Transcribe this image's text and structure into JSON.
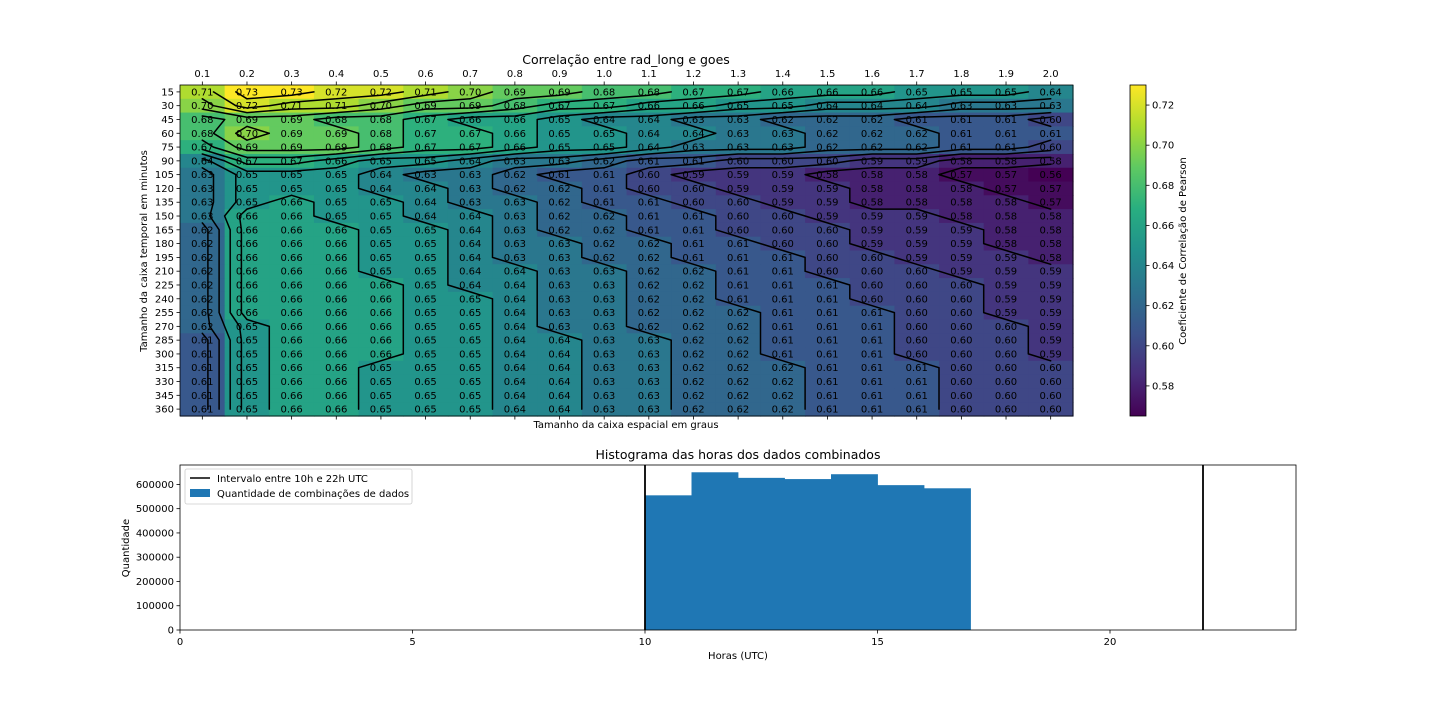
{
  "chart_data": [
    {
      "type": "heatmap",
      "title": "Correlação entre rad_long e goes",
      "xlabel": "Tamanho da caixa espacial em graus",
      "ylabel": "Tamanho da caixa temporal em minutos",
      "colorbar_label": "Coeficiente de Correlação de Pearson",
      "colormap": "viridis",
      "clim": [
        0.565,
        0.73
      ],
      "colorbar_ticks": [
        "0.58",
        "0.60",
        "0.62",
        "0.64",
        "0.66",
        "0.68",
        "0.70",
        "0.72"
      ],
      "x": [
        "0.1",
        "0.2",
        "0.3",
        "0.4",
        "0.5",
        "0.6",
        "0.7",
        "0.8",
        "0.9",
        "1.0",
        "1.1",
        "1.2",
        "1.3",
        "1.4",
        "1.5",
        "1.6",
        "1.7",
        "1.8",
        "1.9",
        "2.0"
      ],
      "y": [
        "15",
        "30",
        "45",
        "60",
        "75",
        "90",
        "105",
        "120",
        "135",
        "150",
        "165",
        "180",
        "195",
        "210",
        "225",
        "240",
        "255",
        "270",
        "285",
        "300",
        "315",
        "330",
        "345",
        "360"
      ],
      "values": [
        [
          0.71,
          0.73,
          0.73,
          0.72,
          0.72,
          0.71,
          0.7,
          0.69,
          0.69,
          0.68,
          0.68,
          0.67,
          0.67,
          0.66,
          0.66,
          0.66,
          0.65,
          0.65,
          0.65,
          0.64
        ],
        [
          0.7,
          0.72,
          0.71,
          0.71,
          0.7,
          0.69,
          0.69,
          0.68,
          0.67,
          0.67,
          0.66,
          0.66,
          0.65,
          0.65,
          0.64,
          0.64,
          0.64,
          0.63,
          0.63,
          0.63
        ],
        [
          0.68,
          0.69,
          0.69,
          0.68,
          0.68,
          0.67,
          0.66,
          0.66,
          0.65,
          0.64,
          0.64,
          0.63,
          0.63,
          0.62,
          0.62,
          0.62,
          0.61,
          0.61,
          0.61,
          0.6
        ],
        [
          0.68,
          0.7,
          0.69,
          0.69,
          0.68,
          0.67,
          0.67,
          0.66,
          0.65,
          0.65,
          0.64,
          0.64,
          0.63,
          0.63,
          0.62,
          0.62,
          0.62,
          0.61,
          0.61,
          0.61
        ],
        [
          0.67,
          0.69,
          0.69,
          0.69,
          0.68,
          0.67,
          0.67,
          0.66,
          0.65,
          0.65,
          0.64,
          0.63,
          0.63,
          0.63,
          0.62,
          0.62,
          0.62,
          0.61,
          0.61,
          0.6
        ],
        [
          0.64,
          0.67,
          0.67,
          0.66,
          0.65,
          0.65,
          0.64,
          0.63,
          0.63,
          0.62,
          0.61,
          0.61,
          0.6,
          0.6,
          0.6,
          0.59,
          0.59,
          0.58,
          0.58,
          0.58
        ],
        [
          0.63,
          0.65,
          0.65,
          0.65,
          0.64,
          0.63,
          0.63,
          0.62,
          0.61,
          0.61,
          0.6,
          0.59,
          0.59,
          0.59,
          0.58,
          0.58,
          0.58,
          0.57,
          0.57,
          0.56
        ],
        [
          0.63,
          0.65,
          0.65,
          0.65,
          0.64,
          0.64,
          0.63,
          0.62,
          0.62,
          0.61,
          0.6,
          0.6,
          0.59,
          0.59,
          0.59,
          0.58,
          0.58,
          0.58,
          0.57,
          0.57
        ],
        [
          0.63,
          0.65,
          0.66,
          0.65,
          0.65,
          0.64,
          0.63,
          0.63,
          0.62,
          0.61,
          0.61,
          0.6,
          0.6,
          0.59,
          0.59,
          0.58,
          0.58,
          0.58,
          0.58,
          0.57
        ],
        [
          0.63,
          0.66,
          0.66,
          0.65,
          0.65,
          0.64,
          0.64,
          0.63,
          0.62,
          0.62,
          0.61,
          0.61,
          0.6,
          0.6,
          0.59,
          0.59,
          0.59,
          0.58,
          0.58,
          0.58
        ],
        [
          0.62,
          0.66,
          0.66,
          0.66,
          0.65,
          0.65,
          0.64,
          0.63,
          0.62,
          0.62,
          0.61,
          0.61,
          0.6,
          0.6,
          0.6,
          0.59,
          0.59,
          0.59,
          0.58,
          0.58
        ],
        [
          0.62,
          0.66,
          0.66,
          0.66,
          0.65,
          0.65,
          0.64,
          0.63,
          0.63,
          0.62,
          0.62,
          0.61,
          0.61,
          0.6,
          0.6,
          0.59,
          0.59,
          0.59,
          0.58,
          0.58
        ],
        [
          0.62,
          0.66,
          0.66,
          0.66,
          0.65,
          0.65,
          0.64,
          0.63,
          0.63,
          0.62,
          0.62,
          0.61,
          0.61,
          0.61,
          0.6,
          0.6,
          0.59,
          0.59,
          0.59,
          0.58
        ],
        [
          0.62,
          0.66,
          0.66,
          0.66,
          0.65,
          0.65,
          0.64,
          0.64,
          0.63,
          0.63,
          0.62,
          0.62,
          0.61,
          0.61,
          0.6,
          0.6,
          0.6,
          0.59,
          0.59,
          0.59
        ],
        [
          0.62,
          0.66,
          0.66,
          0.66,
          0.66,
          0.65,
          0.64,
          0.64,
          0.63,
          0.63,
          0.62,
          0.62,
          0.61,
          0.61,
          0.61,
          0.6,
          0.6,
          0.6,
          0.59,
          0.59
        ],
        [
          0.62,
          0.66,
          0.66,
          0.66,
          0.66,
          0.65,
          0.65,
          0.64,
          0.63,
          0.63,
          0.62,
          0.62,
          0.61,
          0.61,
          0.61,
          0.6,
          0.6,
          0.6,
          0.59,
          0.59
        ],
        [
          0.62,
          0.66,
          0.66,
          0.66,
          0.66,
          0.65,
          0.65,
          0.64,
          0.63,
          0.63,
          0.62,
          0.62,
          0.62,
          0.61,
          0.61,
          0.61,
          0.6,
          0.6,
          0.59,
          0.59
        ],
        [
          0.62,
          0.65,
          0.66,
          0.66,
          0.66,
          0.65,
          0.65,
          0.64,
          0.63,
          0.63,
          0.62,
          0.62,
          0.62,
          0.61,
          0.61,
          0.61,
          0.6,
          0.6,
          0.6,
          0.59
        ],
        [
          0.61,
          0.65,
          0.66,
          0.66,
          0.66,
          0.65,
          0.65,
          0.64,
          0.64,
          0.63,
          0.63,
          0.62,
          0.62,
          0.61,
          0.61,
          0.61,
          0.6,
          0.6,
          0.6,
          0.59
        ],
        [
          0.61,
          0.65,
          0.66,
          0.66,
          0.66,
          0.65,
          0.65,
          0.64,
          0.64,
          0.63,
          0.63,
          0.62,
          0.62,
          0.61,
          0.61,
          0.61,
          0.6,
          0.6,
          0.6,
          0.59
        ],
        [
          0.61,
          0.65,
          0.66,
          0.66,
          0.65,
          0.65,
          0.65,
          0.64,
          0.64,
          0.63,
          0.63,
          0.62,
          0.62,
          0.62,
          0.61,
          0.61,
          0.61,
          0.6,
          0.6,
          0.6
        ],
        [
          0.61,
          0.65,
          0.66,
          0.66,
          0.65,
          0.65,
          0.65,
          0.64,
          0.64,
          0.63,
          0.63,
          0.62,
          0.62,
          0.62,
          0.61,
          0.61,
          0.61,
          0.6,
          0.6,
          0.6
        ],
        [
          0.61,
          0.65,
          0.66,
          0.66,
          0.65,
          0.65,
          0.65,
          0.64,
          0.64,
          0.63,
          0.63,
          0.62,
          0.62,
          0.62,
          0.61,
          0.61,
          0.61,
          0.6,
          0.6,
          0.6
        ],
        [
          0.61,
          0.65,
          0.66,
          0.66,
          0.65,
          0.65,
          0.65,
          0.64,
          0.64,
          0.63,
          0.63,
          0.62,
          0.62,
          0.62,
          0.61,
          0.61,
          0.61,
          0.6,
          0.6,
          0.6
        ]
      ],
      "contour_lines": true,
      "labels_on_cells": true
    },
    {
      "type": "bar",
      "title": "Histograma das horas dos dados combinados",
      "xlabel": "Horas (UTC)",
      "ylabel": "Quantidade",
      "xlim": [
        0,
        24
      ],
      "ylim": [
        0,
        680000
      ],
      "xticks": [
        "0",
        "5",
        "10",
        "15",
        "20"
      ],
      "yticks": [
        "0",
        "100000",
        "200000",
        "300000",
        "400000",
        "500000",
        "600000"
      ],
      "bins": [
        [
          10,
          11
        ],
        [
          11,
          12
        ],
        [
          12,
          13
        ],
        [
          13,
          14
        ],
        [
          14,
          15
        ],
        [
          15,
          16
        ],
        [
          16,
          17
        ]
      ],
      "values": [
        555000,
        650000,
        627000,
        622000,
        642000,
        597000,
        584000
      ],
      "vlines": [
        10,
        22
      ],
      "bar_color": "#1f77b4",
      "legend": {
        "position": "upper-left",
        "entries": [
          "Intervalo entre 10h e 22h UTC",
          "Quantidade de combinações de dados"
        ]
      }
    }
  ]
}
